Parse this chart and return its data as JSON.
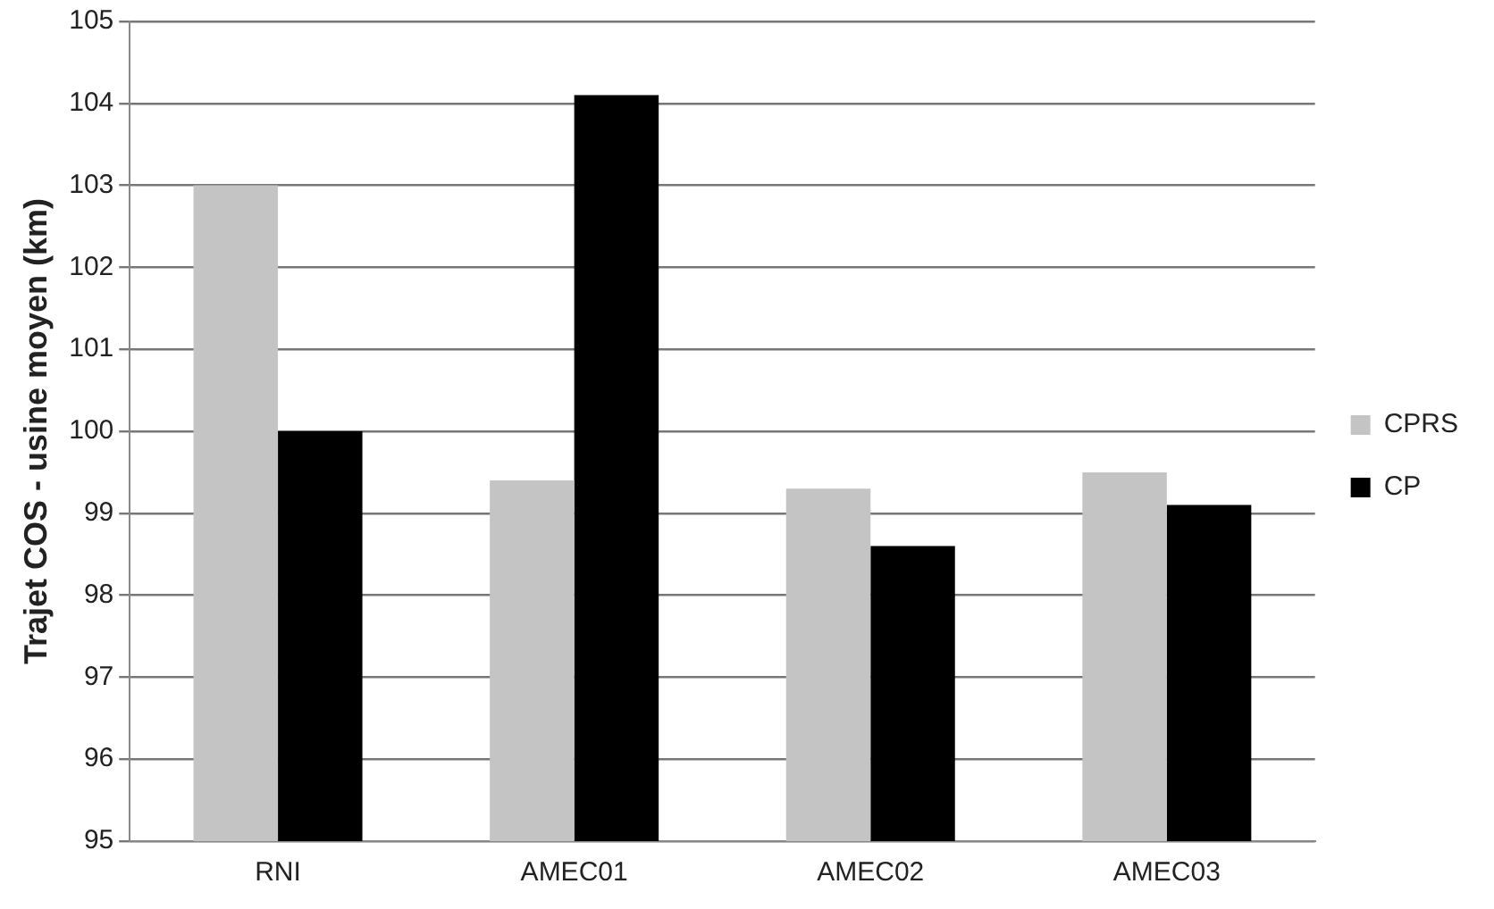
{
  "chart_data": {
    "type": "bar",
    "ylabel": "Trajet COS - usine moyen (km)",
    "categories": [
      "RNI",
      "AMEC01",
      "AMEC02",
      "AMEC03"
    ],
    "series": [
      {
        "name": "CPRS",
        "color": "#c4c4c4",
        "values": [
          103.0,
          99.4,
          99.3,
          99.5
        ]
      },
      {
        "name": "CP",
        "color": "#000000",
        "values": [
          100.0,
          104.1,
          98.6,
          99.1
        ]
      }
    ],
    "ylim": [
      95,
      105
    ],
    "yticks": [
      95,
      96,
      97,
      98,
      99,
      100,
      101,
      102,
      103,
      104,
      105
    ],
    "grid": "y",
    "legend": "right"
  }
}
